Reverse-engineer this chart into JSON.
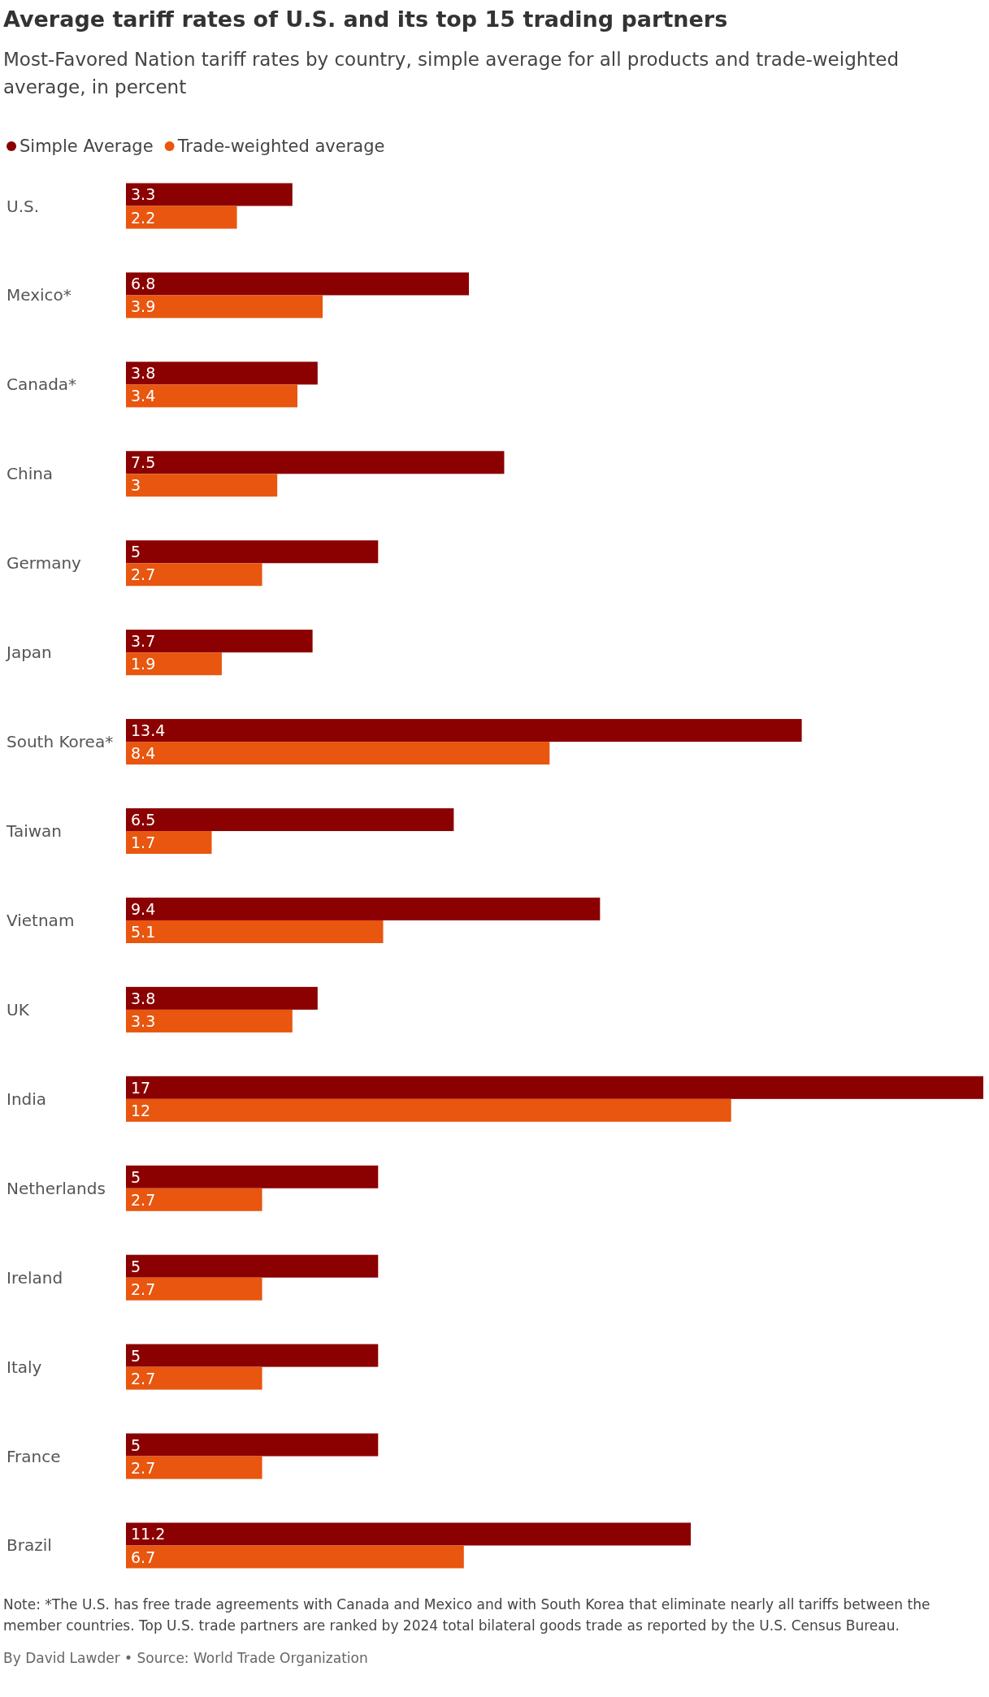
{
  "chart_data": {
    "type": "bar",
    "orientation": "horizontal",
    "title": "Average tariff rates of U.S. and its top 15 trading partners",
    "subtitle": "Most-Favored Nation tariff rates by country, simple average for all products and trade-weighted average, in percent",
    "categories": [
      "U.S.",
      "Mexico*",
      "Canada*",
      "China",
      "Germany",
      "Japan",
      "South Korea*",
      "Taiwan",
      "Vietnam",
      "UK",
      "India",
      "Netherlands",
      "Ireland",
      "Italy",
      "France",
      "Brazil"
    ],
    "series": [
      {
        "name": "Simple Average",
        "color": "#8b0000",
        "values": [
          3.3,
          6.8,
          3.8,
          7.5,
          5,
          3.7,
          13.4,
          6.5,
          9.4,
          3.8,
          17,
          5,
          5,
          5,
          5,
          11.2
        ]
      },
      {
        "name": "Trade-weighted average",
        "color": "#e8560f",
        "values": [
          2.2,
          3.9,
          3.4,
          3,
          2.7,
          1.9,
          8.4,
          1.7,
          5.1,
          3.3,
          12,
          2.7,
          2.7,
          2.7,
          2.7,
          6.7
        ]
      }
    ],
    "data_labels": true,
    "legend": "top left",
    "annotations": [
      "Note: *The U.S. has free trade agreements with Canada and Mexico and with South Korea that eliminate nearly all tariffs between the member countries. Top U.S. trade partners are ranked by 2024 total bilateral goods trade as reported by the U.S. Census Bureau.",
      "By David Lawder • Source: World Trade Organization"
    ]
  }
}
